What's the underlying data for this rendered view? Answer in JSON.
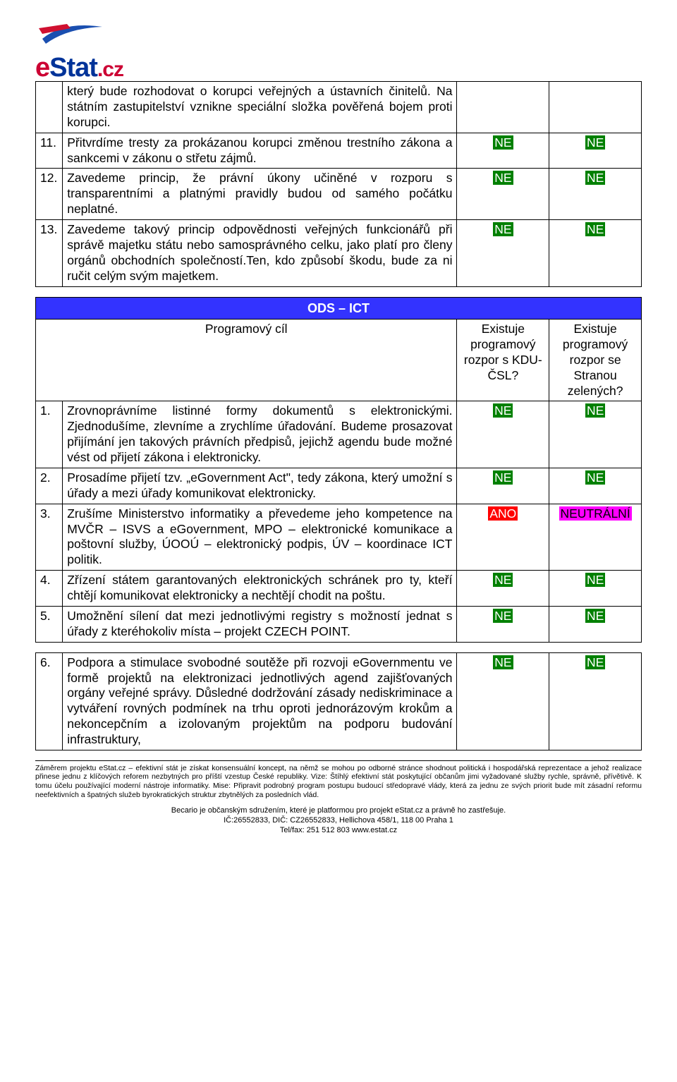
{
  "logo": {
    "e": "e",
    "stat": "Stat",
    "cz": ".cz"
  },
  "colors": {
    "header_bg": "#3333ff",
    "header_fg": "#ffffff",
    "ne_bg": "#008000",
    "ne_fg": "#ffffff",
    "ano_bg": "#ff0000",
    "ano_fg": "#ffffff",
    "neutral_bg": "#ff00ff",
    "neutral_fg": "#000000",
    "text": "#000000",
    "page_bg": "#ffffff"
  },
  "table1": {
    "rows": [
      {
        "n": "",
        "t": "který bude rozhodovat o korupci veřejných a ústavních činitelů. Na státním zastupitelství vznikne speciální složka pověřená bojem proti korupci.",
        "v1": "",
        "v2": ""
      },
      {
        "n": "11.",
        "t": "Přitvrdíme tresty za prokázanou korupci změnou trestního zákona a sankcemi v zákonu o střetu zájmů.",
        "v1": "NE",
        "v2": "NE"
      },
      {
        "n": "12.",
        "t": "Zavedeme princip, že právní úkony učiněné v rozporu s transparentními a platnými pravidly budou od samého počátku neplatné.",
        "v1": "NE",
        "v2": "NE"
      },
      {
        "n": "13.",
        "t": "Zavedeme takový princip odpovědnosti veřejných funkcionářů při správě majetku státu nebo samosprávného celku, jako platí pro členy orgánů obchodních společností.Ten, kdo způsobí škodu, bude za ni ručit celým svým majetkem.",
        "v1": "NE",
        "v2": "NE"
      }
    ]
  },
  "table2": {
    "section_title": "ODS – ICT",
    "headers": {
      "goal": "Programový cíl",
      "col1": "Existuje programový rozpor s KDU-ČSL?",
      "col2": "Existuje programový rozpor se Stranou zelených?"
    },
    "rows": [
      {
        "n": "1.",
        "t": "Zrovnoprávníme listinné formy dokumentů s elektronickými. Zjednodušíme, zlevníme a zrychlíme úřadování. Budeme prosazovat přijímání jen takových právních předpisů, jejichž agendu bude možné vést od přijetí zákona i elektronicky.",
        "v1": "NE",
        "v2": "NE"
      },
      {
        "n": "2.",
        "t": "Prosadíme přijetí tzv. „eGovernment Act\", tedy zákona, který umožní s úřady a mezi úřady komunikovat elektronicky.",
        "v1": "NE",
        "v2": "NE"
      },
      {
        "n": "3.",
        "t": "Zrušíme Ministerstvo informatiky a převedeme jeho kompetence na MVČR – ISVS a eGovernment, MPO – elektronické komunikace a poštovní služby, ÚOOÚ – elektronický podpis, ÚV – koordinace ICT politik.",
        "v1": "ANO",
        "v2": "NEUTRÁLNÍ"
      },
      {
        "n": "4.",
        "t": "Zřízení státem garantovaných elektronických schránek pro ty, kteří chtějí komunikovat elektronicky a nechtějí chodit na poštu.",
        "v1": "NE",
        "v2": "NE"
      },
      {
        "n": "5.",
        "t": "Umožnění sílení dat mezi jednotlivými registry s možností jednat s úřady z kteréhokoliv místa – projekt CZECH POINT.",
        "v1": "NE",
        "v2": "NE"
      }
    ]
  },
  "table3": {
    "rows": [
      {
        "n": "6.",
        "t": "Podpora a stimulace svobodné soutěže při rozvoji eGovernmentu ve formě projektů na elektronizaci jednotlivých agend zajišťovaných orgány veřejné správy. Důsledné dodržování zásady nediskriminace a vytváření rovných podmínek na trhu oproti jednorázovým krokům a nekoncepčním a izolovaným projektům na podporu budování infrastruktury,",
        "v1": "NE",
        "v2": "NE"
      }
    ]
  },
  "footer": {
    "para": "Záměrem projektu eStat.cz – efektivní stát je získat konsensuální koncept, na němž se mohou po odborné stránce shodnout politická i hospodářská reprezentace a jehož realizace přinese jednu z klíčových reforem nezbytných pro příští vzestup České republiky. Vize: Štíhlý efektivní stát poskytující občanům jimi vyžadované služby rychle, správně, přívětivě. K tomu účelu používající moderní nástroje informatiky. Mise: Připravit podrobný program postupu budoucí středopravé vlády, která za jednu ze svých priorit bude mít zásadní reformu neefektivních a špatných služeb byrokratických struktur zbytnělých za posledních vlád.",
    "line1": "Becario je občanským sdružením, které je platformou pro projekt eStat.cz a právně ho zastřešuje.",
    "line2": "IČ:26552833, DIČ: CZ26552833, Hellichova 458/1, 118 00 Praha 1",
    "line3": "Tel/fax: 251 512 803 www.estat.cz"
  }
}
